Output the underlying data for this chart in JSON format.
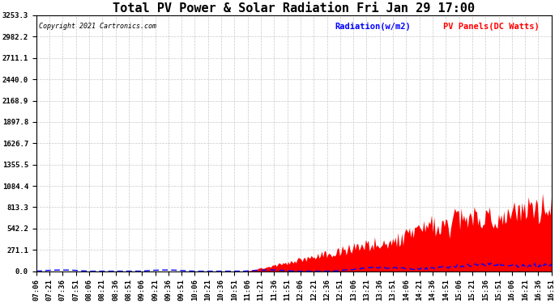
{
  "title": "Total PV Power & Solar Radiation Fri Jan 29 17:00",
  "copyright": "Copyright 2021 Cartronics.com",
  "legend_radiation": "Radiation(w/m2)",
  "legend_pv": "PV Panels(DC Watts)",
  "y_ticks": [
    0.0,
    271.1,
    542.2,
    813.3,
    1084.4,
    1355.5,
    1626.7,
    1897.8,
    2168.9,
    2440.0,
    2711.1,
    2982.2,
    3253.3
  ],
  "x_labels": [
    "07:06",
    "07:21",
    "07:36",
    "07:51",
    "08:06",
    "08:21",
    "08:36",
    "08:51",
    "09:06",
    "09:21",
    "09:36",
    "09:51",
    "10:06",
    "10:21",
    "10:36",
    "10:51",
    "11:06",
    "11:21",
    "11:36",
    "11:51",
    "12:06",
    "12:21",
    "12:36",
    "12:51",
    "13:06",
    "13:21",
    "13:36",
    "13:51",
    "14:06",
    "14:21",
    "14:36",
    "14:51",
    "15:06",
    "15:21",
    "15:36",
    "15:51",
    "16:06",
    "16:21",
    "16:36",
    "16:51"
  ],
  "ymax": 3253.3,
  "bg_color": "#ffffff",
  "fill_color": "#ff0000",
  "line_color": "#0000ff",
  "grid_color": "#bbbbbb",
  "title_fontsize": 11,
  "tick_fontsize": 6.5
}
